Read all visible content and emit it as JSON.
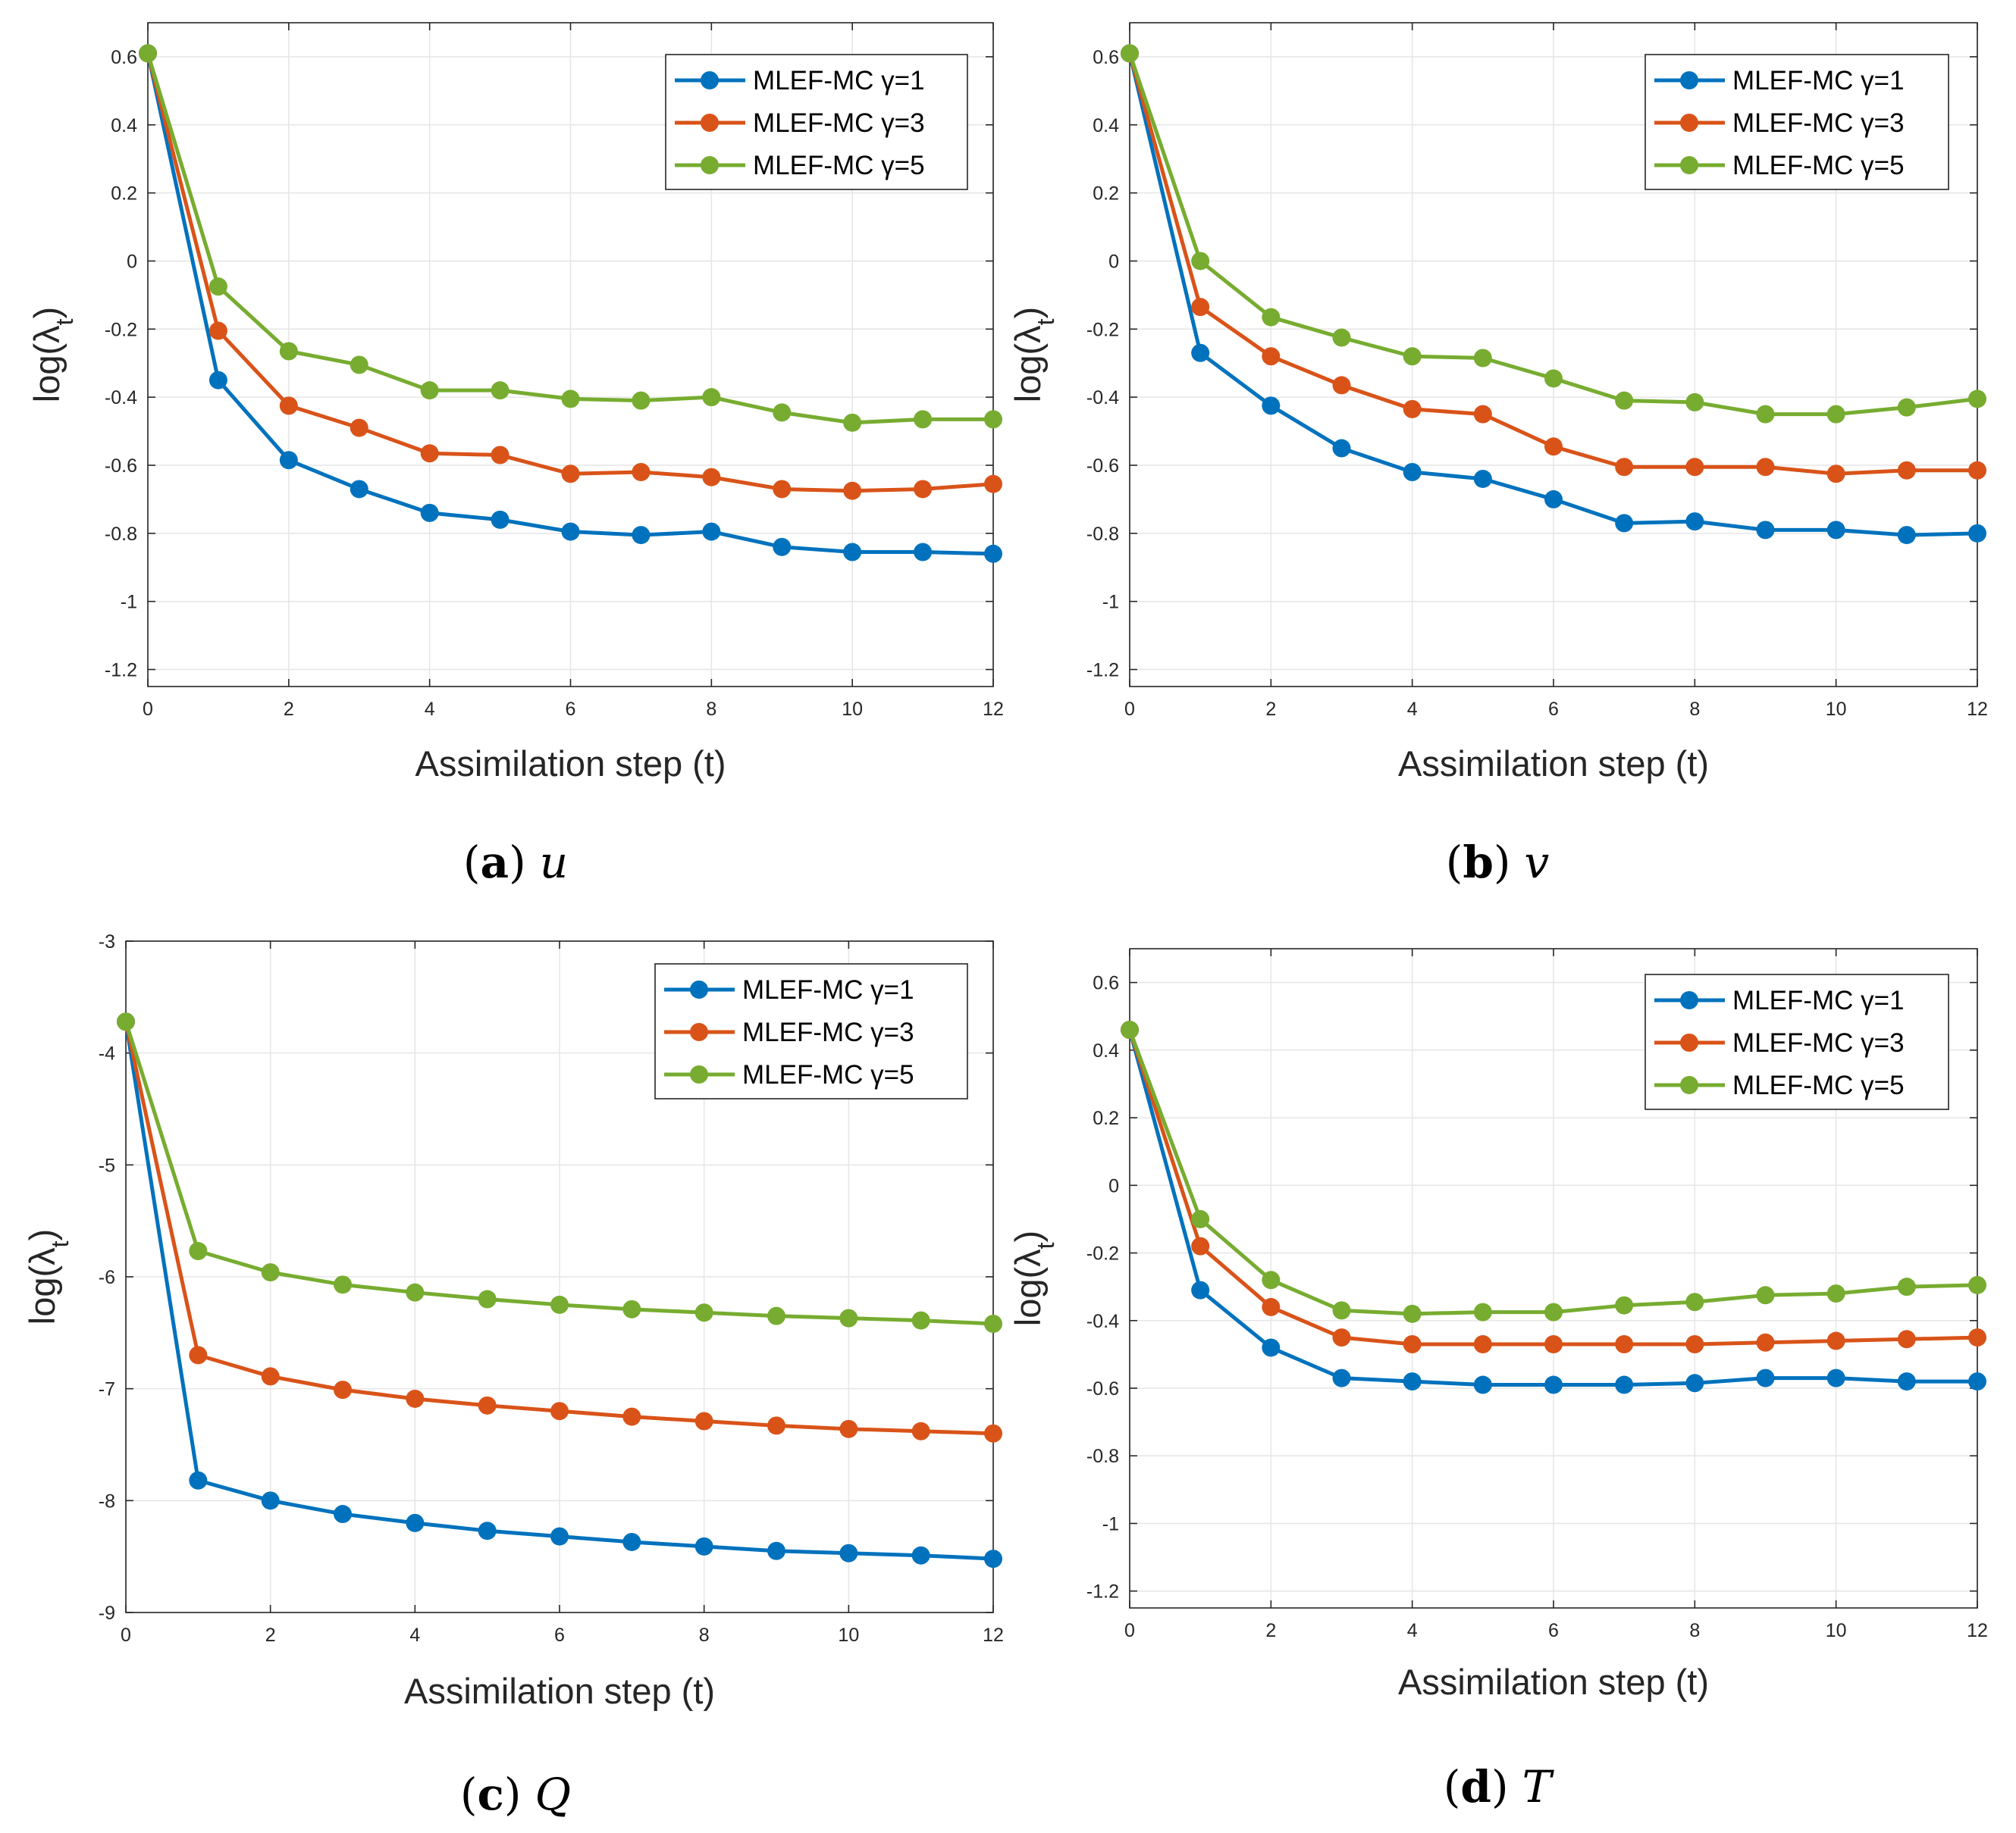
{
  "colors": {
    "gamma1": "#0072BD",
    "gamma3": "#D95319",
    "gamma5": "#77AC30",
    "grid": "#e6e6e6",
    "axis": "#262626"
  },
  "chart_data": [
    {
      "type": "line",
      "caption": {
        "open": "(",
        "letter": "a",
        "close": ")",
        "var": "u"
      },
      "xlabel": "Assimilation step (t)",
      "ylabel": {
        "main": "log(λ",
        "sub": "t",
        "close": ")"
      },
      "xlim": [
        0,
        12
      ],
      "ylim": [
        -1.25,
        0.7
      ],
      "xticks": [
        0,
        2,
        4,
        6,
        8,
        10,
        12
      ],
      "xticklabels": [
        "0",
        "2",
        "4",
        "6",
        "8",
        "10",
        "12"
      ],
      "yticks": [
        0.6,
        0.4,
        0.2,
        0,
        -0.2,
        -0.4,
        -0.6,
        -0.8,
        -1,
        -1.2
      ],
      "yticklabels": [
        "0.6",
        "0.4",
        "0.2",
        "0",
        "-0.2",
        "-0.4",
        "-0.6",
        "-0.8",
        "-1",
        "-1.2"
      ],
      "grid": true,
      "legend": "top-right",
      "x": [
        0,
        1,
        2,
        3,
        4,
        5,
        6,
        7,
        8,
        9,
        10,
        11,
        12
      ],
      "series": [
        {
          "name": "MLEF-MC γ=1",
          "color_key": "gamma1",
          "values": [
            0.61,
            -0.35,
            -0.585,
            -0.67,
            -0.74,
            -0.76,
            -0.795,
            -0.805,
            -0.795,
            -0.84,
            -0.855,
            -0.855,
            -0.86
          ]
        },
        {
          "name": "MLEF-MC γ=3",
          "color_key": "gamma3",
          "values": [
            0.61,
            -0.205,
            -0.425,
            -0.49,
            -0.565,
            -0.57,
            -0.625,
            -0.62,
            -0.635,
            -0.67,
            -0.675,
            -0.67,
            -0.655
          ]
        },
        {
          "name": "MLEF-MC γ=5",
          "color_key": "gamma5",
          "values": [
            0.61,
            -0.075,
            -0.265,
            -0.305,
            -0.38,
            -0.38,
            -0.405,
            -0.41,
            -0.4,
            -0.445,
            -0.475,
            -0.465,
            -0.465
          ]
        }
      ]
    },
    {
      "type": "line",
      "caption": {
        "open": "(",
        "letter": "b",
        "close": ")",
        "var": "v"
      },
      "xlabel": "Assimilation step (t)",
      "ylabel": {
        "main": "log(λ",
        "sub": "t",
        "close": ")"
      },
      "xlim": [
        0,
        12
      ],
      "ylim": [
        -1.25,
        0.7
      ],
      "xticks": [
        0,
        2,
        4,
        6,
        8,
        10,
        12
      ],
      "xticklabels": [
        "0",
        "2",
        "4",
        "6",
        "8",
        "10",
        "12"
      ],
      "yticks": [
        0.6,
        0.4,
        0.2,
        0,
        -0.2,
        -0.4,
        -0.6,
        -0.8,
        -1,
        -1.2
      ],
      "yticklabels": [
        "0.6",
        "0.4",
        "0.2",
        "0",
        "-0.2",
        "-0.4",
        "-0.6",
        "-0.8",
        "-1",
        "-1.2"
      ],
      "grid": true,
      "legend": "top-right",
      "x": [
        0,
        1,
        2,
        3,
        4,
        5,
        6,
        7,
        8,
        9,
        10,
        11,
        12
      ],
      "series": [
        {
          "name": "MLEF-MC γ=1",
          "color_key": "gamma1",
          "values": [
            0.61,
            -0.27,
            -0.425,
            -0.55,
            -0.62,
            -0.64,
            -0.7,
            -0.77,
            -0.765,
            -0.79,
            -0.79,
            -0.805,
            -0.8
          ]
        },
        {
          "name": "MLEF-MC γ=3",
          "color_key": "gamma3",
          "values": [
            0.61,
            -0.135,
            -0.28,
            -0.365,
            -0.435,
            -0.45,
            -0.545,
            -0.605,
            -0.605,
            -0.605,
            -0.625,
            -0.615,
            -0.615
          ]
        },
        {
          "name": "MLEF-MC γ=5",
          "color_key": "gamma5",
          "values": [
            0.61,
            0.0,
            -0.165,
            -0.225,
            -0.28,
            -0.285,
            -0.345,
            -0.41,
            -0.415,
            -0.45,
            -0.45,
            -0.43,
            -0.405
          ]
        }
      ]
    },
    {
      "type": "line",
      "caption": {
        "open": "(",
        "letter": "c",
        "close": ")",
        "var": "Q"
      },
      "xlabel": "Assimilation step (t)",
      "ylabel": {
        "main": "log(λ",
        "sub": "t",
        "close": ")"
      },
      "xlim": [
        0,
        12
      ],
      "ylim": [
        -9,
        -3
      ],
      "xticks": [
        0,
        2,
        4,
        6,
        8,
        10,
        12
      ],
      "xticklabels": [
        "0",
        "2",
        "4",
        "6",
        "8",
        "10",
        "12"
      ],
      "yticks": [
        -3,
        -4,
        -5,
        -6,
        -7,
        -8,
        -9
      ],
      "yticklabels": [
        "-3",
        "-4",
        "-5",
        "-6",
        "-7",
        "-8",
        "-9"
      ],
      "grid": true,
      "legend": "top-right",
      "x": [
        0,
        1,
        2,
        3,
        4,
        5,
        6,
        7,
        8,
        9,
        10,
        11,
        12
      ],
      "series": [
        {
          "name": "MLEF-MC γ=1",
          "color_key": "gamma1",
          "values": [
            -3.72,
            -7.82,
            -8.0,
            -8.12,
            -8.2,
            -8.27,
            -8.32,
            -8.37,
            -8.41,
            -8.45,
            -8.47,
            -8.49,
            -8.52
          ]
        },
        {
          "name": "MLEF-MC γ=3",
          "color_key": "gamma3",
          "values": [
            -3.72,
            -6.7,
            -6.89,
            -7.01,
            -7.09,
            -7.15,
            -7.2,
            -7.25,
            -7.29,
            -7.33,
            -7.36,
            -7.38,
            -7.4
          ]
        },
        {
          "name": "MLEF-MC γ=5",
          "color_key": "gamma5",
          "values": [
            -3.72,
            -5.77,
            -5.96,
            -6.07,
            -6.14,
            -6.2,
            -6.25,
            -6.29,
            -6.32,
            -6.35,
            -6.37,
            -6.39,
            -6.42
          ]
        }
      ]
    },
    {
      "type": "line",
      "caption": {
        "open": "(",
        "letter": "d",
        "close": ")",
        "var": "T"
      },
      "xlabel": "Assimilation step (t)",
      "ylabel": {
        "main": "log(λ",
        "sub": "t",
        "close": ")"
      },
      "xlim": [
        0,
        12
      ],
      "ylim": [
        -1.25,
        0.7
      ],
      "xticks": [
        0,
        2,
        4,
        6,
        8,
        10,
        12
      ],
      "xticklabels": [
        "0",
        "2",
        "4",
        "6",
        "8",
        "10",
        "12"
      ],
      "yticks": [
        0.6,
        0.4,
        0.2,
        0,
        -0.2,
        -0.4,
        -0.6,
        -0.8,
        -1,
        -1.2
      ],
      "yticklabels": [
        "0.6",
        "0.4",
        "0.2",
        "0",
        "-0.2",
        "-0.4",
        "-0.6",
        "-0.8",
        "-1",
        "-1.2"
      ],
      "grid": true,
      "legend": "top-right",
      "x": [
        0,
        1,
        2,
        3,
        4,
        5,
        6,
        7,
        8,
        9,
        10,
        11,
        12
      ],
      "series": [
        {
          "name": "MLEF-MC γ=1",
          "color_key": "gamma1",
          "values": [
            0.46,
            -0.31,
            -0.48,
            -0.57,
            -0.58,
            -0.59,
            -0.59,
            -0.59,
            -0.585,
            -0.57,
            -0.57,
            -0.58,
            -0.58
          ]
        },
        {
          "name": "MLEF-MC γ=3",
          "color_key": "gamma3",
          "values": [
            0.46,
            -0.18,
            -0.36,
            -0.45,
            -0.47,
            -0.47,
            -0.47,
            -0.47,
            -0.47,
            -0.465,
            -0.46,
            -0.455,
            -0.45
          ]
        },
        {
          "name": "MLEF-MC γ=5",
          "color_key": "gamma5",
          "values": [
            0.46,
            -0.1,
            -0.28,
            -0.37,
            -0.38,
            -0.375,
            -0.375,
            -0.355,
            -0.345,
            -0.325,
            -0.32,
            -0.3,
            -0.295
          ]
        }
      ]
    }
  ]
}
